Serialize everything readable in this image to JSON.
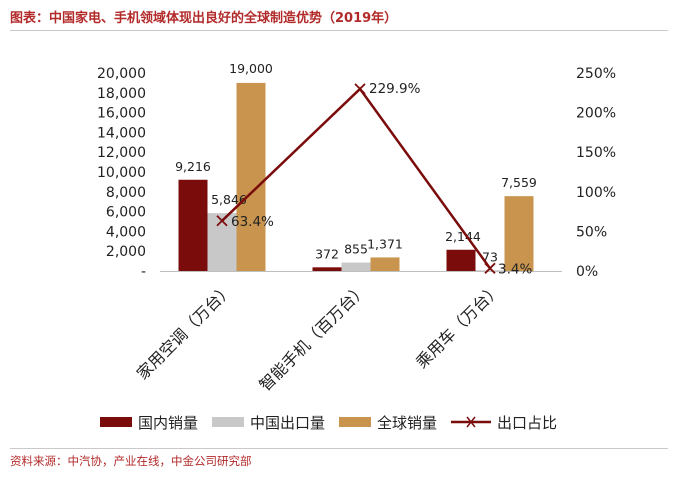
{
  "title": "图表：中国家电、手机领域体现出良好的全球制造优势（2019年）",
  "source": "资料来源：中汽协，产业在线，中金公司研究部",
  "legend": {
    "domestic": "国内销量",
    "china_export": "中国出口量",
    "global": "全球销量",
    "export_share": "出口占比"
  },
  "colors": {
    "domestic": "#7b0c0c",
    "china_export": "#c8c8c8",
    "global": "#c8944e",
    "export_share": "#7b0c0c"
  },
  "chart_data": {
    "type": "bar",
    "categories": [
      "家用空调（万台）",
      "智能手机（百万台）",
      "乘用车（万台）"
    ],
    "series": [
      {
        "name": "国内销量",
        "values": [
          9216,
          372,
          2144
        ],
        "labels": [
          "9,216",
          "372",
          "2,144"
        ]
      },
      {
        "name": "中国出口量",
        "values": [
          5846,
          855,
          73
        ],
        "labels": [
          "5,846",
          "855",
          "73"
        ]
      },
      {
        "name": "全球销量",
        "values": [
          19000,
          1371,
          7559
        ],
        "labels": [
          "19,000",
          "1,371",
          "7,559"
        ]
      }
    ],
    "line_series": {
      "name": "出口占比",
      "values": [
        63.4,
        229.9,
        3.4
      ],
      "labels": [
        "63.4%",
        "229.9%",
        "3.4%"
      ],
      "axis": "right"
    },
    "y_left": {
      "ylim": [
        0,
        20000
      ],
      "ticks": [
        "-",
        "2,000",
        "4,000",
        "6,000",
        "8,000",
        "10,000",
        "12,000",
        "14,000",
        "16,000",
        "18,000",
        "20,000"
      ]
    },
    "y_right": {
      "ylim": [
        0,
        250
      ],
      "ticks": [
        "0%",
        "50%",
        "100%",
        "150%",
        "200%",
        "250%"
      ]
    },
    "grid": false,
    "legend_position": "bottom"
  }
}
